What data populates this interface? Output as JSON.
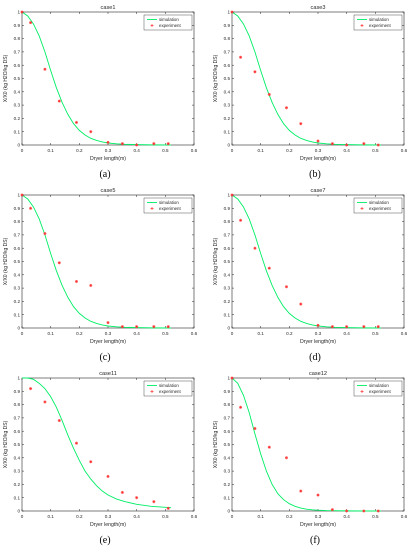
{
  "chart_data": [
    {
      "type": "scatter",
      "panel_label": "(a)",
      "title": "case1",
      "xlabel": "Dryer length(m)",
      "ylabel": "X/X0 (kg H2O/kg DS)",
      "xlim": [
        0,
        0.6
      ],
      "ylim": [
        0,
        1
      ],
      "xticks": [
        "0",
        "0.1",
        "0.2",
        "0.3",
        "0.4",
        "0.5",
        "0.6"
      ],
      "yticks": [
        "0",
        "0.1",
        "0.2",
        "0.3",
        "0.4",
        "0.5",
        "0.6",
        "0.7",
        "0.8",
        "0.9",
        "1"
      ],
      "legend": [
        "simulation",
        "experiment"
      ],
      "legend_position": "top-right",
      "series": [
        {
          "name": "simulation",
          "kind": "line",
          "color": "#00ee66",
          "x": [
            0,
            0.02,
            0.04,
            0.06,
            0.08,
            0.1,
            0.12,
            0.14,
            0.16,
            0.18,
            0.2,
            0.22,
            0.24,
            0.26,
            0.28,
            0.3,
            0.33,
            0.36,
            0.4,
            0.45,
            0.52
          ],
          "y": [
            1,
            0.97,
            0.91,
            0.82,
            0.7,
            0.56,
            0.43,
            0.32,
            0.23,
            0.16,
            0.11,
            0.075,
            0.05,
            0.034,
            0.023,
            0.015,
            0.009,
            0.005,
            0.003,
            0.001,
            0
          ]
        },
        {
          "name": "experiment",
          "kind": "scatter",
          "color": "#ff3030",
          "x": [
            0,
            0.03,
            0.08,
            0.13,
            0.19,
            0.24,
            0.3,
            0.35,
            0.4,
            0.46,
            0.51
          ],
          "y": [
            1,
            0.92,
            0.57,
            0.33,
            0.17,
            0.1,
            0.02,
            0.01,
            0.0,
            0.01,
            0.01
          ]
        }
      ]
    },
    {
      "type": "scatter",
      "panel_label": "(b)",
      "title": "case3",
      "xlabel": "Dryer length(m)",
      "ylabel": "X/X0 (kg H2O/kg DS)",
      "xlim": [
        0,
        0.6
      ],
      "ylim": [
        0,
        1
      ],
      "xticks": [
        "0",
        "0.1",
        "0.2",
        "0.3",
        "0.4",
        "0.5",
        "0.6"
      ],
      "yticks": [
        "0",
        "0.1",
        "0.2",
        "0.3",
        "0.4",
        "0.5",
        "0.6",
        "0.7",
        "0.8",
        "0.9",
        "1"
      ],
      "legend": [
        "simulation",
        "experiment"
      ],
      "legend_position": "top-right",
      "series": [
        {
          "name": "simulation",
          "kind": "line",
          "color": "#00ee66",
          "x": [
            0,
            0.02,
            0.04,
            0.06,
            0.08,
            0.1,
            0.12,
            0.14,
            0.16,
            0.18,
            0.2,
            0.22,
            0.24,
            0.26,
            0.28,
            0.3,
            0.33,
            0.36,
            0.4,
            0.45,
            0.52
          ],
          "y": [
            1,
            0.97,
            0.91,
            0.82,
            0.7,
            0.56,
            0.43,
            0.32,
            0.23,
            0.16,
            0.11,
            0.075,
            0.05,
            0.034,
            0.023,
            0.015,
            0.009,
            0.005,
            0.003,
            0.001,
            0
          ]
        },
        {
          "name": "experiment",
          "kind": "scatter",
          "color": "#ff3030",
          "x": [
            0,
            0.03,
            0.08,
            0.13,
            0.19,
            0.24,
            0.3,
            0.35,
            0.4,
            0.46,
            0.51
          ],
          "y": [
            1,
            0.66,
            0.55,
            0.38,
            0.28,
            0.16,
            0.03,
            0.01,
            0.0,
            0.01,
            0.0
          ]
        }
      ]
    },
    {
      "type": "scatter",
      "panel_label": "(c)",
      "title": "case5",
      "xlabel": "Dryer length(m)",
      "ylabel": "X/X0 (kg H2O/kg DS)",
      "xlim": [
        0,
        0.6
      ],
      "ylim": [
        0,
        1
      ],
      "xticks": [
        "0",
        "0.1",
        "0.2",
        "0.3",
        "0.4",
        "0.5",
        "0.6"
      ],
      "yticks": [
        "0",
        "0.1",
        "0.2",
        "0.3",
        "0.4",
        "0.5",
        "0.6",
        "0.7",
        "0.8",
        "0.9",
        "1"
      ],
      "legend": [
        "simulation",
        "experiment"
      ],
      "legend_position": "top-right",
      "series": [
        {
          "name": "simulation",
          "kind": "line",
          "color": "#00ee66",
          "x": [
            0,
            0.02,
            0.04,
            0.06,
            0.08,
            0.1,
            0.12,
            0.14,
            0.16,
            0.18,
            0.2,
            0.22,
            0.24,
            0.26,
            0.28,
            0.3,
            0.33,
            0.36,
            0.4,
            0.45,
            0.52
          ],
          "y": [
            1,
            0.97,
            0.91,
            0.82,
            0.7,
            0.56,
            0.43,
            0.32,
            0.23,
            0.16,
            0.11,
            0.075,
            0.05,
            0.034,
            0.023,
            0.015,
            0.009,
            0.005,
            0.003,
            0.001,
            0
          ]
        },
        {
          "name": "experiment",
          "kind": "scatter",
          "color": "#ff3030",
          "x": [
            0,
            0.03,
            0.08,
            0.13,
            0.19,
            0.24,
            0.3,
            0.35,
            0.4,
            0.46,
            0.51
          ],
          "y": [
            1,
            0.9,
            0.71,
            0.49,
            0.35,
            0.32,
            0.04,
            0.01,
            0.01,
            0.01,
            0.01
          ]
        }
      ]
    },
    {
      "type": "scatter",
      "panel_label": "(d)",
      "title": "case7",
      "xlabel": "Dryer length(m)",
      "ylabel": "X/X0 (kg H2O/kg DS)",
      "xlim": [
        0,
        0.6
      ],
      "ylim": [
        0,
        1
      ],
      "xticks": [
        "0",
        "0.1",
        "0.2",
        "0.3",
        "0.4",
        "0.5",
        "0.6"
      ],
      "yticks": [
        "0",
        "0.1",
        "0.2",
        "0.3",
        "0.4",
        "0.5",
        "0.6",
        "0.7",
        "0.8",
        "0.9",
        "1"
      ],
      "legend": [
        "simulation",
        "experiment"
      ],
      "legend_position": "top-right",
      "series": [
        {
          "name": "simulation",
          "kind": "line",
          "color": "#00ee66",
          "x": [
            0,
            0.02,
            0.04,
            0.06,
            0.08,
            0.1,
            0.12,
            0.14,
            0.16,
            0.18,
            0.2,
            0.22,
            0.24,
            0.26,
            0.28,
            0.3,
            0.33,
            0.36,
            0.4,
            0.45,
            0.52
          ],
          "y": [
            1,
            0.97,
            0.91,
            0.82,
            0.7,
            0.56,
            0.43,
            0.32,
            0.23,
            0.16,
            0.11,
            0.075,
            0.05,
            0.034,
            0.023,
            0.015,
            0.009,
            0.005,
            0.003,
            0.001,
            0
          ]
        },
        {
          "name": "experiment",
          "kind": "scatter",
          "color": "#ff3030",
          "x": [
            0,
            0.03,
            0.08,
            0.13,
            0.19,
            0.24,
            0.3,
            0.35,
            0.4,
            0.46,
            0.51
          ],
          "y": [
            1,
            0.81,
            0.6,
            0.45,
            0.31,
            0.18,
            0.02,
            0.01,
            0.01,
            0.01,
            0.01
          ]
        }
      ]
    },
    {
      "type": "scatter",
      "panel_label": "(e)",
      "title": "case11",
      "xlabel": "Dryer length(m)",
      "ylabel": "X/X0 (kg H2O/kg DS)",
      "xlim": [
        0,
        0.6
      ],
      "ylim": [
        0,
        1
      ],
      "xticks": [
        "0",
        "0.1",
        "0.2",
        "0.3",
        "0.4",
        "0.5",
        "0.6"
      ],
      "yticks": [
        "0",
        "0.1",
        "0.2",
        "0.3",
        "0.4",
        "0.5",
        "0.6",
        "0.7",
        "0.8",
        "0.9",
        "1"
      ],
      "legend": [
        "simulation",
        "experiment"
      ],
      "legend_position": "top-right",
      "series": [
        {
          "name": "simulation",
          "kind": "line",
          "color": "#00ee66",
          "x": [
            0,
            0.02,
            0.04,
            0.06,
            0.08,
            0.1,
            0.12,
            0.14,
            0.16,
            0.18,
            0.2,
            0.22,
            0.24,
            0.26,
            0.28,
            0.3,
            0.33,
            0.36,
            0.4,
            0.45,
            0.52
          ],
          "y": [
            1,
            1.0,
            0.99,
            0.96,
            0.92,
            0.86,
            0.78,
            0.68,
            0.57,
            0.47,
            0.38,
            0.3,
            0.24,
            0.19,
            0.15,
            0.12,
            0.09,
            0.07,
            0.05,
            0.035,
            0.025
          ]
        },
        {
          "name": "experiment",
          "kind": "scatter",
          "color": "#ff3030",
          "x": [
            0.03,
            0.08,
            0.13,
            0.19,
            0.24,
            0.3,
            0.35,
            0.4,
            0.46,
            0.51
          ],
          "y": [
            0.92,
            0.82,
            0.68,
            0.51,
            0.37,
            0.26,
            0.14,
            0.1,
            0.07,
            0.02
          ]
        }
      ]
    },
    {
      "type": "scatter",
      "panel_label": "(f)",
      "title": "case12",
      "xlabel": "Dryer length(m)",
      "ylabel": "X/X0 (kg H2O/kg DS)",
      "xlim": [
        0,
        0.6
      ],
      "ylim": [
        0,
        1
      ],
      "xticks": [
        "0",
        "0.1",
        "0.2",
        "0.3",
        "0.4",
        "0.5",
        "0.6"
      ],
      "yticks": [
        "0",
        "0.1",
        "0.2",
        "0.3",
        "0.4",
        "0.5",
        "0.6",
        "0.7",
        "0.8",
        "0.9",
        "1"
      ],
      "legend": [
        "simulation",
        "experiment"
      ],
      "legend_position": "top-right",
      "series": [
        {
          "name": "simulation",
          "kind": "line",
          "color": "#00ee66",
          "x": [
            0,
            0.02,
            0.04,
            0.06,
            0.08,
            0.1,
            0.12,
            0.14,
            0.16,
            0.18,
            0.2,
            0.22,
            0.24,
            0.26,
            0.28,
            0.3,
            0.33,
            0.36,
            0.4,
            0.45,
            0.52
          ],
          "y": [
            1,
            0.96,
            0.87,
            0.74,
            0.58,
            0.43,
            0.3,
            0.2,
            0.13,
            0.085,
            0.055,
            0.035,
            0.022,
            0.014,
            0.009,
            0.006,
            0.003,
            0.002,
            0.001,
            0,
            0
          ]
        },
        {
          "name": "experiment",
          "kind": "scatter",
          "color": "#ff3030",
          "x": [
            0,
            0.03,
            0.08,
            0.13,
            0.19,
            0.24,
            0.3,
            0.35,
            0.4,
            0.46,
            0.51
          ],
          "y": [
            1,
            0.78,
            0.62,
            0.48,
            0.4,
            0.15,
            0.12,
            0.01,
            0.0,
            0.0,
            0.0
          ]
        }
      ]
    }
  ]
}
